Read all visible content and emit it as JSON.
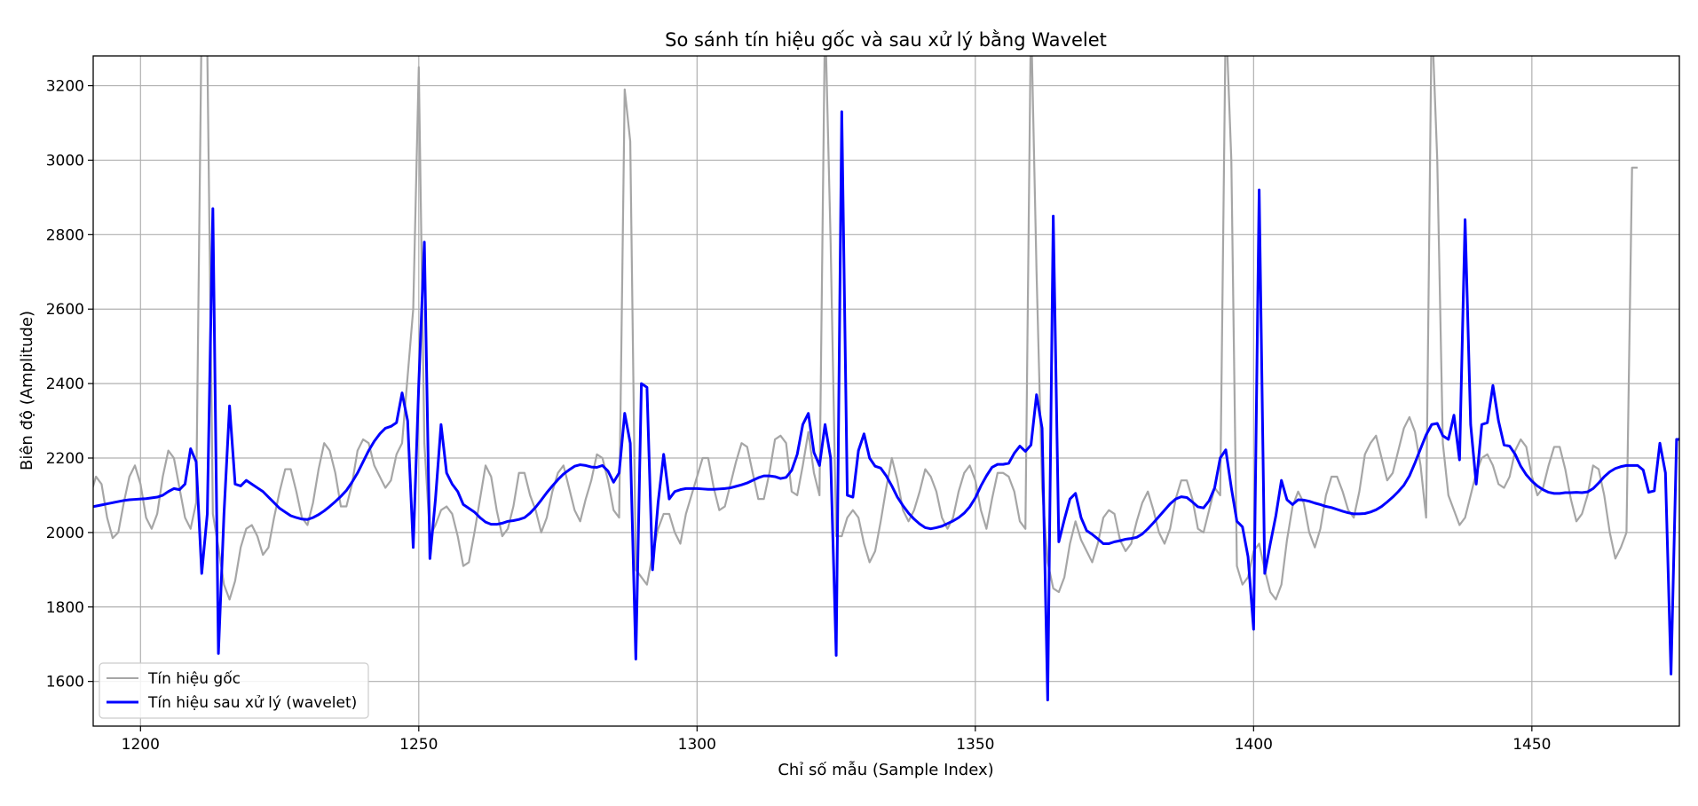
{
  "chart_data": {
    "type": "line",
    "title": "So sánh tín hiệu gốc và sau xử lý bằng Wavelet",
    "xlabel": "Chỉ số mẫu (Sample Index)",
    "ylabel": "Biên độ (Amplitude)",
    "xlim": [
      1191.5,
      1476.5
    ],
    "ylim": [
      1480,
      3280
    ],
    "x_ticks": [
      1200,
      1250,
      1300,
      1350,
      1400,
      1450
    ],
    "y_ticks": [
      1600,
      1800,
      2000,
      2200,
      2400,
      2600,
      2800,
      3000,
      3200
    ],
    "grid": true,
    "legend_position": "lower-left",
    "x_start": 1191,
    "series": [
      {
        "name": "Tín hiệu gốc",
        "color": "#a6a6a6",
        "values": [
          2100,
          2150,
          2130,
          2040,
          1985,
          2000,
          2080,
          2150,
          2180,
          2130,
          2040,
          2010,
          2050,
          2150,
          2220,
          2200,
          2120,
          2040,
          2010,
          2080,
          3400,
          3300,
          2050,
          1960,
          1860,
          1820,
          1870,
          1960,
          2010,
          2020,
          1990,
          1940,
          1960,
          2040,
          2110,
          2170,
          2170,
          2110,
          2040,
          2020,
          2080,
          2170,
          2240,
          2220,
          2160,
          2070,
          2070,
          2130,
          2220,
          2250,
          2240,
          2180,
          2150,
          2120,
          2140,
          2210,
          2240,
          2420,
          2600,
          3250,
          2240,
          1990,
          2020,
          2060,
          2070,
          2050,
          1990,
          1910,
          1920,
          2000,
          2090,
          2180,
          2150,
          2060,
          1990,
          2010,
          2070,
          2160,
          2160,
          2100,
          2060,
          2000,
          2040,
          2110,
          2160,
          2180,
          2120,
          2060,
          2030,
          2090,
          2140,
          2210,
          2200,
          2140,
          2060,
          2040,
          3190,
          3050,
          1900,
          1880,
          1860,
          1940,
          2010,
          2050,
          2050,
          2000,
          1970,
          2050,
          2100,
          2150,
          2200,
          2200,
          2120,
          2060,
          2070,
          2130,
          2190,
          2240,
          2230,
          2160,
          2090,
          2090,
          2160,
          2250,
          2260,
          2240,
          2110,
          2100,
          2180,
          2270,
          2160,
          2100,
          3400,
          2780,
          1990,
          1990,
          2040,
          2060,
          2040,
          1970,
          1920,
          1950,
          2030,
          2120,
          2200,
          2140,
          2060,
          2030,
          2060,
          2110,
          2170,
          2150,
          2110,
          2040,
          2010,
          2040,
          2110,
          2160,
          2180,
          2140,
          2060,
          2010,
          2090,
          2160,
          2160,
          2150,
          2110,
          2030,
          2010,
          3400,
          2700,
          2120,
          1920,
          1850,
          1840,
          1880,
          1970,
          2030,
          1980,
          1950,
          1920,
          1970,
          2040,
          2060,
          2050,
          1980,
          1950,
          1970,
          2030,
          2080,
          2110,
          2060,
          2000,
          1970,
          2010,
          2090,
          2140,
          2140,
          2090,
          2010,
          2000,
          2060,
          2120,
          2100,
          3400,
          3000,
          1910,
          1860,
          1880,
          1950,
          1970,
          1900,
          1840,
          1820,
          1860,
          1980,
          2070,
          2110,
          2080,
          2000,
          1960,
          2010,
          2100,
          2150,
          2150,
          2110,
          2060,
          2040,
          2110,
          2210,
          2240,
          2260,
          2200,
          2140,
          2160,
          2220,
          2280,
          2310,
          2270,
          2180,
          2040,
          3400,
          3000,
          2240,
          2100,
          2060,
          2020,
          2040,
          2100,
          2160,
          2200,
          2210,
          2180,
          2130,
          2120,
          2150,
          2220,
          2250,
          2230,
          2150,
          2100,
          2120,
          2180,
          2230,
          2230,
          2170,
          2090,
          2030,
          2050,
          2100,
          2180,
          2170,
          2100,
          2000,
          1930,
          1960,
          2000,
          2980,
          2980
        ]
      },
      {
        "name": "Tín hiệu sau xử lý (wavelet)",
        "color": "#0000ff",
        "values": [
          2068,
          2071,
          2074,
          2077,
          2080,
          2083,
          2086,
          2088,
          2089,
          2090,
          2091,
          2093,
          2095,
          2100,
          2110,
          2118,
          2115,
          2130,
          2225,
          2190,
          1890,
          2050,
          2870,
          1675,
          2050,
          2340,
          2130,
          2125,
          2140,
          2130,
          2120,
          2110,
          2095,
          2080,
          2065,
          2055,
          2045,
          2040,
          2036,
          2035,
          2040,
          2048,
          2058,
          2070,
          2083,
          2097,
          2113,
          2135,
          2160,
          2190,
          2220,
          2245,
          2265,
          2280,
          2285,
          2295,
          2375,
          2300,
          1960,
          2400,
          2780,
          1930,
          2090,
          2290,
          2160,
          2130,
          2110,
          2075,
          2065,
          2055,
          2040,
          2028,
          2022,
          2022,
          2025,
          2030,
          2032,
          2035,
          2040,
          2052,
          2068,
          2087,
          2107,
          2125,
          2142,
          2157,
          2168,
          2178,
          2182,
          2180,
          2176,
          2175,
          2180,
          2165,
          2135,
          2160,
          2320,
          2240,
          1660,
          2400,
          2390,
          1900,
          2080,
          2210,
          2090,
          2110,
          2115,
          2118,
          2118,
          2118,
          2117,
          2116,
          2116,
          2117,
          2118,
          2120,
          2124,
          2128,
          2133,
          2140,
          2147,
          2152,
          2152,
          2150,
          2145,
          2148,
          2167,
          2210,
          2290,
          2320,
          2215,
          2180,
          2290,
          2200,
          1670,
          3130,
          2100,
          2095,
          2220,
          2265,
          2200,
          2178,
          2173,
          2152,
          2125,
          2095,
          2072,
          2052,
          2036,
          2023,
          2013,
          2010,
          2013,
          2017,
          2024,
          2031,
          2040,
          2052,
          2069,
          2093,
          2125,
          2152,
          2175,
          2183,
          2183,
          2186,
          2213,
          2232,
          2218,
          2235,
          2370,
          2280,
          1550,
          2850,
          1975,
          2035,
          2090,
          2105,
          2040,
          2005,
          1995,
          1983,
          1970,
          1970,
          1975,
          1978,
          1982,
          1984,
          1987,
          1996,
          2010,
          2026,
          2043,
          2060,
          2077,
          2090,
          2096,
          2094,
          2082,
          2069,
          2066,
          2085,
          2120,
          2200,
          2222,
          2120,
          2030,
          2015,
          1935,
          1740,
          2920,
          1890,
          1970,
          2045,
          2140,
          2088,
          2075,
          2088,
          2087,
          2084,
          2079,
          2075,
          2070,
          2067,
          2062,
          2057,
          2053,
          2050,
          2050,
          2051,
          2055,
          2061,
          2070,
          2082,
          2095,
          2110,
          2127,
          2152,
          2187,
          2225,
          2262,
          2290,
          2293,
          2260,
          2250,
          2315,
          2195,
          2840,
          2290,
          2130,
          2290,
          2295,
          2395,
          2300,
          2235,
          2232,
          2210,
          2178,
          2155,
          2138,
          2125,
          2115,
          2108,
          2105,
          2105,
          2107,
          2107,
          2108,
          2107,
          2109,
          2118,
          2133,
          2150,
          2163,
          2172,
          2177,
          2180,
          2180,
          2180,
          2168,
          2108,
          2112,
          2240,
          2160,
          1620,
          2250,
          2250
        ]
      }
    ]
  }
}
